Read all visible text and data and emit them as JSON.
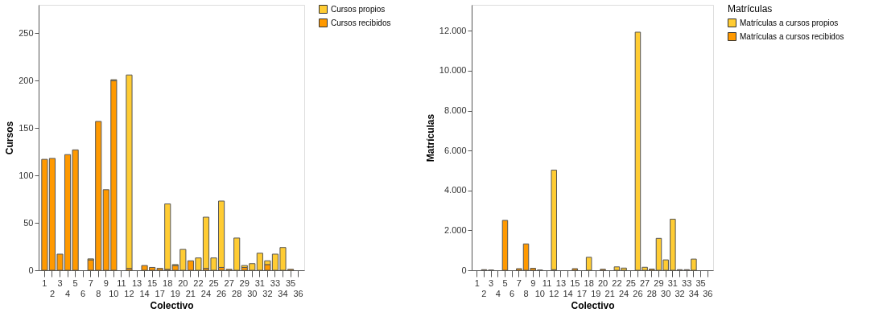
{
  "chart_data": [
    {
      "type": "bar",
      "stacked": true,
      "xlabel": "Colectivo",
      "ylabel": "Cursos",
      "legend": "right",
      "grid": false,
      "categories": [
        "1",
        "2",
        "3",
        "4",
        "5",
        "6",
        "7",
        "8",
        "9",
        "10",
        "11",
        "12",
        "13",
        "14",
        "15",
        "17",
        "18",
        "19",
        "20",
        "21",
        "22",
        "24",
        "25",
        "26",
        "27",
        "28",
        "29",
        "30",
        "31",
        "32",
        "33",
        "34",
        "35",
        "36"
      ],
      "series": [
        {
          "name": "Cursos recibidos",
          "color": "#ff9900",
          "values": [
            117,
            118,
            17,
            122,
            127,
            0,
            11,
            157,
            85,
            200,
            0,
            2,
            0,
            5,
            3,
            2,
            1,
            5,
            0,
            10,
            0,
            2,
            0,
            3,
            1,
            0,
            3,
            0,
            0,
            6,
            0,
            0,
            1,
            0
          ]
        },
        {
          "name": "Cursos propios",
          "color": "#ffcc33",
          "values": [
            0,
            0,
            0,
            0,
            0,
            0,
            1,
            0,
            0,
            1,
            0,
            204,
            0,
            0,
            0,
            0,
            69,
            1,
            22,
            0,
            13,
            54,
            13,
            70,
            0,
            34,
            2,
            7,
            18,
            4,
            17,
            24,
            0,
            0
          ]
        }
      ],
      "ylim": [
        0,
        280
      ],
      "yticks": [
        0,
        50,
        100,
        150,
        200,
        250
      ]
    },
    {
      "type": "bar",
      "stacked": true,
      "xlabel": "Colectivo",
      "ylabel": "Matrículas",
      "legend": "right",
      "legend_title": "Matrículas",
      "grid": false,
      "categories": [
        "1",
        "2",
        "3",
        "4",
        "5",
        "6",
        "7",
        "8",
        "9",
        "10",
        "11",
        "12",
        "13",
        "14",
        "15",
        "17",
        "18",
        "19",
        "20",
        "21",
        "22",
        "24",
        "25",
        "26",
        "27",
        "28",
        "29",
        "30",
        "31",
        "32",
        "33",
        "34",
        "35",
        "36"
      ],
      "series": [
        {
          "name": "Matrículas a cursos recibidos",
          "color": "#ff9900",
          "values": [
            0,
            30,
            10,
            0,
            2500,
            0,
            80,
            1320,
            100,
            10,
            0,
            30,
            0,
            null,
            80,
            0,
            0,
            0,
            50,
            0,
            0,
            0,
            0,
            0,
            0,
            60,
            0,
            0,
            0,
            30,
            30,
            0,
            0,
            0
          ]
        },
        {
          "name": "Matrículas a cursos propios",
          "color": "#ffcc33",
          "values": [
            0,
            0,
            0,
            0,
            0,
            0,
            0,
            0,
            0,
            0,
            0,
            4990,
            0,
            0,
            0,
            0,
            650,
            0,
            0,
            0,
            170,
            110,
            0,
            11930,
            150,
            0,
            1600,
            520,
            2560,
            0,
            0,
            560,
            0,
            0
          ]
        }
      ],
      "ylim": [
        0,
        13300
      ],
      "yticks": [
        0,
        {
          "value": 2000,
          "label": "2.000"
        },
        {
          "value": 4000,
          "label": "4.000"
        },
        {
          "value": 6000,
          "label": "6.000"
        },
        {
          "value": 8000,
          "label": "8.000"
        },
        {
          "value": 10000,
          "label": "10.000"
        },
        {
          "value": 12000,
          "label": "12.000"
        }
      ]
    }
  ]
}
